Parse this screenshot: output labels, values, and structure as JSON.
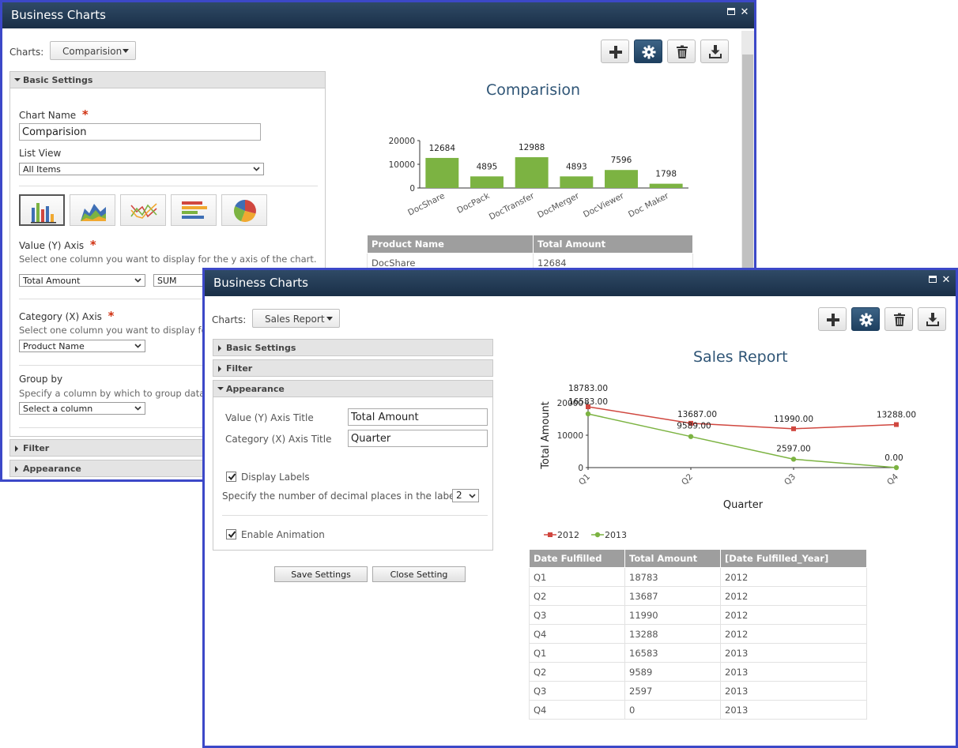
{
  "window1": {
    "title": "Business Charts",
    "charts_label": "Charts:",
    "charts_value": "Comparision",
    "sections": {
      "basic": "Basic Settings",
      "filter": "Filter",
      "appearance": "Appearance"
    },
    "chart_name_label": "Chart Name",
    "required_mark": "*",
    "chart_name_value": "Comparision",
    "list_view_label": "List View",
    "list_view_value": "All Items",
    "chart_types": [
      "column-chart",
      "area-chart",
      "line-chart",
      "bar-chart",
      "pie-chart"
    ],
    "value_axis_label": "Value (Y) Axis",
    "value_axis_hint": "Select one column you want to display for the y axis of the chart.",
    "value_axis_column": "Total Amount",
    "value_axis_func": "SUM",
    "category_axis_label": "Category (X) Axis",
    "category_axis_hint": "Select one column you want to display fo",
    "category_axis_column": "Product Name",
    "group_by_label": "Group by",
    "group_by_hint": "Specify a column by which to group data",
    "group_by_value": "Select a column",
    "table": {
      "headers": [
        "Product Name",
        "Total Amount"
      ],
      "rows": [
        [
          "DocShare",
          "12684"
        ]
      ]
    }
  },
  "window2": {
    "title": "Business Charts",
    "charts_label": "Charts:",
    "charts_value": "Sales Report",
    "sections": {
      "basic": "Basic Settings",
      "filter": "Filter",
      "appearance": "Appearance"
    },
    "y_title_label": "Value (Y) Axis Title",
    "y_title_value": "Total Amount",
    "x_title_label": "Category (X) Axis Title",
    "x_title_value": "Quarter",
    "display_labels": "Display Labels",
    "decimal_label": "Specify the number of decimal places in the label:",
    "decimal_value": "2",
    "enable_animation": "Enable Animation",
    "save_button": "Save Settings",
    "close_button": "Close Setting",
    "table": {
      "headers": [
        "Date Fulfilled",
        "Total Amount",
        "[Date Fulfilled_Year]"
      ],
      "rows": [
        [
          "Q1",
          "18783",
          "2012"
        ],
        [
          "Q2",
          "13687",
          "2012"
        ],
        [
          "Q3",
          "11990",
          "2012"
        ],
        [
          "Q4",
          "13288",
          "2012"
        ],
        [
          "Q1",
          "16583",
          "2013"
        ],
        [
          "Q2",
          "9589",
          "2013"
        ],
        [
          "Q3",
          "2597",
          "2013"
        ],
        [
          "Q4",
          "0",
          "2013"
        ]
      ]
    }
  },
  "colors": {
    "bar_green": "#7cb342",
    "series_2012": "#d0473f",
    "series_2013": "#7cb342",
    "title_blue": "#2f5576",
    "window_border": "#3c48c8"
  },
  "chart_data": [
    {
      "type": "bar",
      "title": "Comparision",
      "categories": [
        "DocShare",
        "DocPack",
        "DocTransfer",
        "DocMerger",
        "DocViewer",
        "Doc Maker"
      ],
      "values": [
        12684,
        4895,
        12988,
        4893,
        7596,
        1798
      ],
      "data_labels": [
        "12684",
        "4895",
        "12988",
        "4893",
        "7596",
        "1798"
      ],
      "ylim": [
        0,
        20000
      ],
      "yticks": [
        "20000",
        "10000",
        "0"
      ],
      "xlabel": "",
      "ylabel": ""
    },
    {
      "type": "line",
      "title": "Sales Report",
      "categories": [
        "Q1",
        "Q2",
        "Q3",
        "Q4"
      ],
      "series": [
        {
          "name": "2012",
          "values": [
            18783,
            13687,
            11990,
            13288
          ],
          "labels": [
            "18783.00",
            "13687.00",
            "11990.00",
            "13288.00"
          ]
        },
        {
          "name": "2013",
          "values": [
            16583,
            9589,
            2597,
            0
          ],
          "labels": [
            "16583.00",
            "9589.00",
            "2597.00",
            "0.00"
          ]
        }
      ],
      "ylim": [
        0,
        20000
      ],
      "yticks": [
        "20000",
        "10000",
        "0"
      ],
      "xlabel": "Quarter",
      "ylabel": "Total Amount",
      "legend": "bottom-left"
    }
  ]
}
